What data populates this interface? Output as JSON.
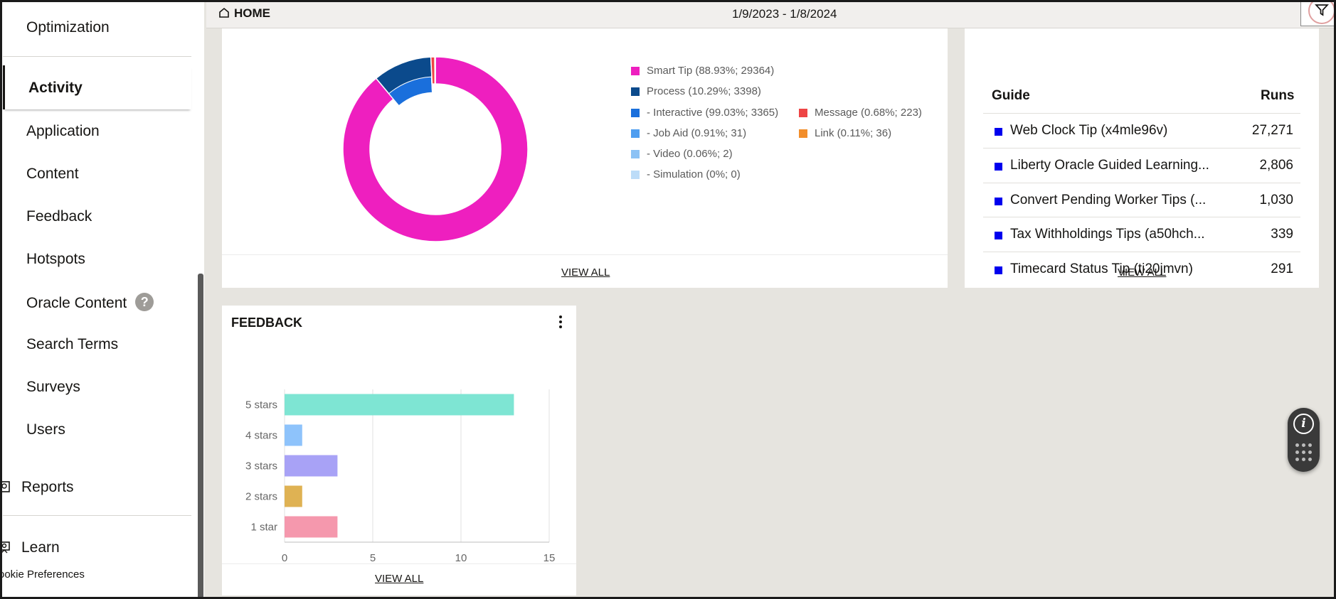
{
  "header": {
    "home_label": "HOME",
    "date_range": "1/9/2023 - 1/8/2024"
  },
  "sidebar": {
    "items": [
      {
        "label": "Optimization"
      },
      {
        "label": "Activity",
        "active": true
      },
      {
        "label": "Application"
      },
      {
        "label": "Content"
      },
      {
        "label": "Feedback"
      },
      {
        "label": "Hotspots"
      },
      {
        "label": "Oracle Content",
        "badge": "?"
      },
      {
        "label": "Search Terms"
      },
      {
        "label": "Surveys"
      },
      {
        "label": "Users"
      }
    ],
    "reports_label": "Reports",
    "learn_label": "Learn",
    "cookie_label": "ookie Preferences"
  },
  "activity": {
    "view_all": "VIEW ALL",
    "legend": [
      {
        "label": "Smart Tip (88.93%; 29364)",
        "color": "#ee1fbf"
      },
      {
        "label": "Process (10.29%; 3398)",
        "color": "#0b4a8c"
      },
      {
        "label": " - Interactive (99.03%; 3365)",
        "color": "#1a6fdc"
      },
      {
        "label": " - Job Aid (0.91%; 31)",
        "color": "#4f9ef0"
      },
      {
        "label": " - Video (0.06%; 2)",
        "color": "#8cc2f5"
      },
      {
        "label": " - Simulation (0%; 0)",
        "color": "#bcdcf8"
      },
      {
        "label": "Message (0.68%; 223)",
        "color": "#ee4444"
      },
      {
        "label": "Link (0.11%; 36)",
        "color": "#f28e2b"
      }
    ]
  },
  "guides": {
    "col_guide": "Guide",
    "col_runs": "Runs",
    "view_all": "VIEW ALL",
    "rows": [
      {
        "name": "Web Clock Tip (x4mle96v)",
        "runs": "27,271"
      },
      {
        "name": "Liberty Oracle Guided Learning...",
        "runs": "2,806"
      },
      {
        "name": "Convert Pending Worker Tips (...",
        "runs": "1,030"
      },
      {
        "name": "Tax Withholdings Tips (a50hch...",
        "runs": "339"
      },
      {
        "name": "Timecard Status Tip (ti20jmvn)",
        "runs": "291"
      }
    ]
  },
  "feedback": {
    "title": "FEEDBACK",
    "view_all": "VIEW ALL"
  },
  "chart_data": [
    {
      "type": "pie",
      "variant": "donut",
      "slices": [
        {
          "label": "Smart Tip",
          "value": 29364,
          "percent": 88.93,
          "color": "#ee1fbf"
        },
        {
          "label": "Process",
          "value": 3398,
          "percent": 10.29,
          "color": "#0b4a8c"
        },
        {
          "label": "Message",
          "value": 223,
          "percent": 0.68,
          "color": "#ee4444"
        },
        {
          "label": "Link",
          "value": 36,
          "percent": 0.11,
          "color": "#f28e2b"
        }
      ],
      "sub_slices": {
        "parent": "Process",
        "items": [
          {
            "label": "Interactive",
            "value": 3365,
            "percent": 99.03,
            "color": "#1a6fdc"
          },
          {
            "label": "Job Aid",
            "value": 31,
            "percent": 0.91,
            "color": "#4f9ef0"
          },
          {
            "label": "Video",
            "value": 2,
            "percent": 0.06,
            "color": "#8cc2f5"
          },
          {
            "label": "Simulation",
            "value": 0,
            "percent": 0,
            "color": "#bcdcf8"
          }
        ]
      },
      "legend_position": "right"
    },
    {
      "type": "bar",
      "orientation": "horizontal",
      "categories": [
        "5 stars",
        "4 stars",
        "3 stars",
        "2 stars",
        "1 star"
      ],
      "values": [
        13,
        1,
        3,
        1,
        3
      ],
      "colors": [
        "#7ee5d3",
        "#8ec3fb",
        "#a8a2f6",
        "#dfb253",
        "#f598ad"
      ],
      "xlim": [
        0,
        15
      ],
      "xticks": [
        0,
        5,
        10,
        15
      ],
      "grid": true
    }
  ]
}
